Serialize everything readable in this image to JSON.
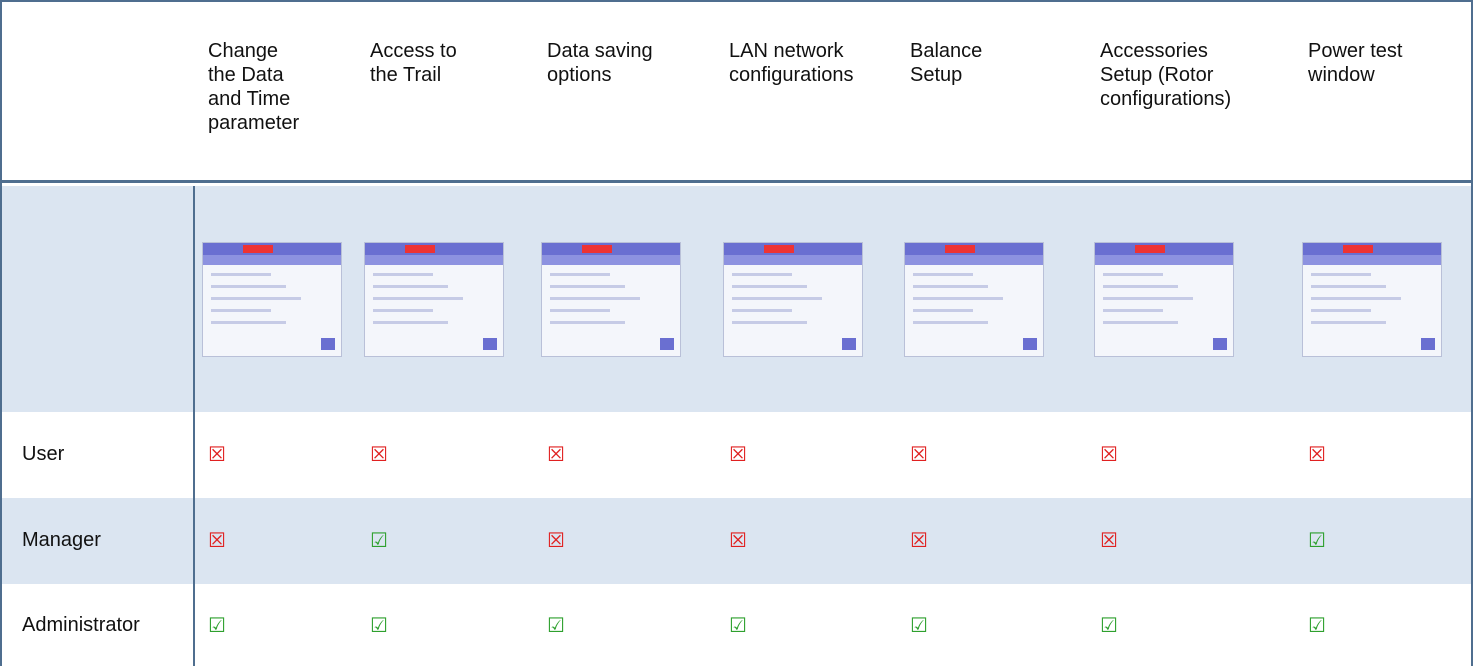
{
  "table": {
    "columns": [
      [
        "Change",
        "the Data",
        "and Time",
        "parameter"
      ],
      [
        "Access to",
        "the Trail"
      ],
      [
        "Data saving",
        "options"
      ],
      [
        "LAN network",
        "configurations"
      ],
      [
        "Balance",
        "Setup"
      ],
      [
        "Accessories",
        "Setup (Rotor",
        "configurations)"
      ],
      [
        "Power test",
        "window"
      ]
    ],
    "rows": [
      {
        "label": "User",
        "cells": [
          {
            "symbol": "☒",
            "color": "#e02020"
          },
          {
            "symbol": "☒",
            "color": "#e02020"
          },
          {
            "symbol": "☒",
            "color": "#e02020"
          },
          {
            "symbol": "☒",
            "color": "#e02020"
          },
          {
            "symbol": "☒",
            "color": "#e02020"
          },
          {
            "symbol": "☒",
            "color": "#e02020"
          },
          {
            "symbol": "☒",
            "color": "#e02020"
          }
        ]
      },
      {
        "label": "Manager",
        "cells": [
          {
            "symbol": "☒",
            "color": "#e02020"
          },
          {
            "symbol": "☑",
            "color": "#2ea02e"
          },
          {
            "symbol": "☒",
            "color": "#e02020"
          },
          {
            "symbol": "☒",
            "color": "#e02020"
          },
          {
            "symbol": "☒",
            "color": "#e02020"
          },
          {
            "symbol": "☒",
            "color": "#e02020"
          },
          {
            "symbol": "☑",
            "color": "#2ea02e"
          }
        ]
      },
      {
        "label": "Administrator",
        "cells": [
          {
            "symbol": "☑",
            "color": "#2ea02e"
          },
          {
            "symbol": "☑",
            "color": "#2ea02e"
          },
          {
            "symbol": "☑",
            "color": "#2ea02e"
          },
          {
            "symbol": "☑",
            "color": "#2ea02e"
          },
          {
            "symbol": "☑",
            "color": "#2ea02e"
          },
          {
            "symbol": "☑",
            "color": "#2ea02e"
          },
          {
            "symbol": "☑",
            "color": "#2ea02e"
          }
        ]
      }
    ]
  }
}
